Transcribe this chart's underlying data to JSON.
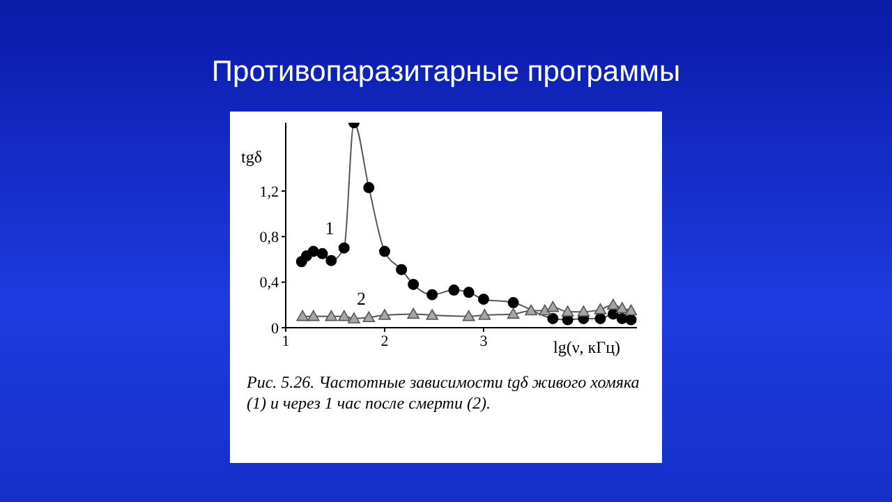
{
  "chart_data": {
    "type": "line",
    "title": "Противопаразитарные программы",
    "xlabel": "lg(ν, кГц)",
    "ylabel": "tgδ",
    "annotations": [
      "Рис. 5.26. Частотные зависимости tgδ живого хомяка (1) и через 1 час после смерти (2)."
    ],
    "xlim": [
      1,
      4.55
    ],
    "xticks": [
      1,
      2,
      3
    ],
    "ylim": [
      0,
      1.8
    ],
    "yticks": [
      0,
      {
        "value": 0.4,
        "label": "0,4"
      },
      {
        "value": 0.8,
        "label": "0,8"
      },
      {
        "value": 1.2,
        "label": "1,2"
      }
    ],
    "grid": false,
    "legend": false,
    "series": [
      {
        "name": "1",
        "color": "#000000",
        "marker": "circle",
        "x": [
          1.16,
          1.21,
          1.28,
          1.37,
          1.46,
          1.59,
          1.69,
          1.84,
          2.0,
          2.17,
          2.29,
          2.48,
          2.7,
          2.85,
          3.0,
          3.3,
          3.7,
          3.85,
          4.01,
          4.18,
          4.31,
          4.4,
          4.49
        ],
        "values": [
          0.58,
          0.63,
          0.67,
          0.65,
          0.59,
          0.7,
          1.8,
          1.23,
          0.67,
          0.51,
          0.38,
          0.29,
          0.33,
          0.31,
          0.25,
          0.22,
          0.08,
          0.07,
          0.08,
          0.08,
          0.12,
          0.08,
          0.07
        ]
      },
      {
        "name": "2",
        "color": "#a6a6a6",
        "marker": "triangle",
        "x": [
          1.17,
          1.28,
          1.46,
          1.59,
          1.69,
          1.84,
          2.0,
          2.29,
          2.48,
          2.85,
          3.01,
          3.3,
          3.48,
          3.62,
          3.7,
          3.85,
          4.01,
          4.18,
          4.31,
          4.4,
          4.49
        ],
        "values": [
          0.1,
          0.1,
          0.1,
          0.1,
          0.08,
          0.09,
          0.11,
          0.12,
          0.11,
          0.1,
          0.11,
          0.12,
          0.15,
          0.15,
          0.18,
          0.14,
          0.14,
          0.16,
          0.2,
          0.17,
          0.15
        ]
      }
    ]
  }
}
